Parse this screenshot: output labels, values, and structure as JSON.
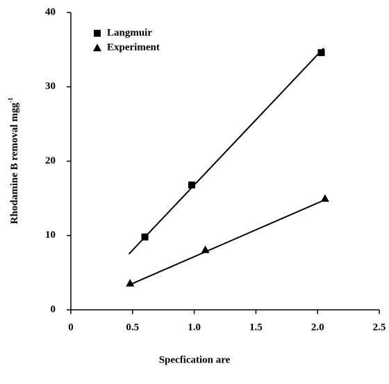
{
  "chart_data": {
    "type": "scatter",
    "x_label": "Specfication are",
    "y_label": "Rhodamine B removal mgg",
    "y_label_superscript": "-1",
    "xlim": [
      0,
      2.5
    ],
    "xticks": [
      0,
      0.5,
      {
        "value": 1,
        "label": "1.0"
      },
      1.5,
      {
        "value": 2,
        "label": "2.0"
      },
      2.5
    ],
    "ylim": [
      0,
      40
    ],
    "yticks": [
      0,
      10,
      20,
      30,
      40
    ],
    "grid": false,
    "legend": "upper-left",
    "series": [
      {
        "name": "Langmuir",
        "marker": "square",
        "color": "#000000",
        "x": [
          0.6,
          0.98,
          2.03
        ],
        "values": [
          9.8,
          16.8,
          34.6
        ],
        "fit_x": [
          0.47,
          2.05
        ],
        "fit_values": [
          7.5,
          35.2
        ]
      },
      {
        "name": "Experiment",
        "marker": "triangle",
        "color": "#000000",
        "x": [
          0.48,
          1.09,
          2.06
        ],
        "values": [
          3.6,
          8.1,
          15.0
        ],
        "fit_x": [
          0.48,
          2.06
        ],
        "fit_values": [
          3.4,
          14.8
        ]
      }
    ]
  }
}
